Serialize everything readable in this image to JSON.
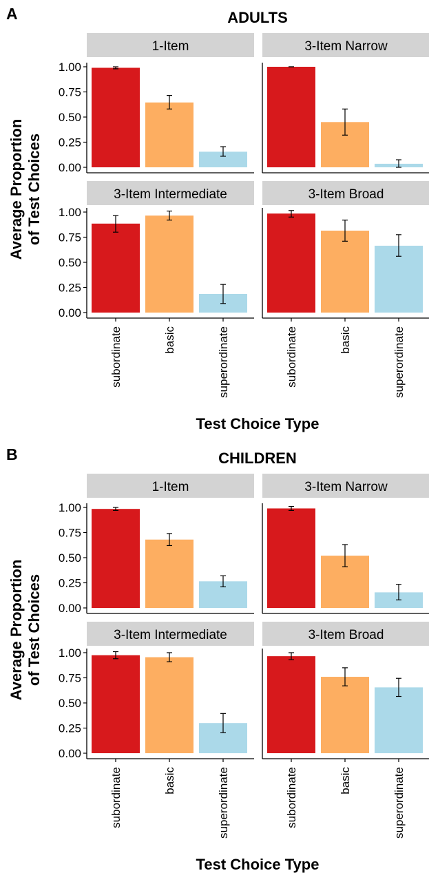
{
  "chart_data": [
    {
      "type": "bar",
      "panel_letter": "A",
      "title": "ADULTS",
      "xlabel": "Test Choice Type",
      "ylabel": [
        "Average Proportion",
        "of Test Choices"
      ],
      "ylim": [
        0,
        1
      ],
      "yticks": [
        "0.00",
        "0.25",
        "0.50",
        "0.75",
        "1.00"
      ],
      "categories": [
        "subordinate",
        "basic",
        "superordinate"
      ],
      "grid": false,
      "facets": [
        {
          "name": "1-Item",
          "values": [
            0.99,
            0.645,
            0.155
          ],
          "error_low": [
            0.98,
            0.58,
            0.11
          ],
          "error_high": [
            1.0,
            0.715,
            0.205
          ]
        },
        {
          "name": "3-Item Narrow",
          "values": [
            1.0,
            0.45,
            0.035
          ],
          "error_low": [
            1.0,
            0.32,
            0.0
          ],
          "error_high": [
            1.0,
            0.58,
            0.075
          ]
        },
        {
          "name": "3-Item Intermediate",
          "values": [
            0.885,
            0.965,
            0.185
          ],
          "error_low": [
            0.8,
            0.92,
            0.09
          ],
          "error_high": [
            0.965,
            1.01,
            0.28
          ]
        },
        {
          "name": "3-Item Broad",
          "values": [
            0.985,
            0.815,
            0.665
          ],
          "error_low": [
            0.95,
            0.71,
            0.56
          ],
          "error_high": [
            1.015,
            0.92,
            0.775
          ]
        }
      ]
    },
    {
      "type": "bar",
      "panel_letter": "B",
      "title": "CHILDREN",
      "xlabel": "Test Choice Type",
      "ylabel": [
        "Average Proportion",
        "of Test Choices"
      ],
      "ylim": [
        0,
        1
      ],
      "yticks": [
        "0.00",
        "0.25",
        "0.50",
        "0.75",
        "1.00"
      ],
      "categories": [
        "subordinate",
        "basic",
        "superordinate"
      ],
      "grid": false,
      "facets": [
        {
          "name": "1-Item",
          "values": [
            0.985,
            0.68,
            0.265
          ],
          "error_low": [
            0.97,
            0.62,
            0.21
          ],
          "error_high": [
            1.0,
            0.74,
            0.32
          ]
        },
        {
          "name": "3-Item Narrow",
          "values": [
            0.99,
            0.52,
            0.155
          ],
          "error_low": [
            0.97,
            0.41,
            0.08
          ],
          "error_high": [
            1.01,
            0.63,
            0.235
          ]
        },
        {
          "name": "3-Item Intermediate",
          "values": [
            0.975,
            0.955,
            0.3
          ],
          "error_low": [
            0.94,
            0.91,
            0.205
          ],
          "error_high": [
            1.01,
            1.0,
            0.395
          ]
        },
        {
          "name": "3-Item Broad",
          "values": [
            0.965,
            0.76,
            0.655
          ],
          "error_low": [
            0.93,
            0.67,
            0.565
          ],
          "error_high": [
            1.0,
            0.85,
            0.745
          ]
        }
      ]
    }
  ],
  "colors": {
    "subordinate": "#d7191c",
    "basic": "#fdae61",
    "superordinate": "#abd9e9",
    "strip": "#d3d3d3",
    "axis": "#000000"
  }
}
